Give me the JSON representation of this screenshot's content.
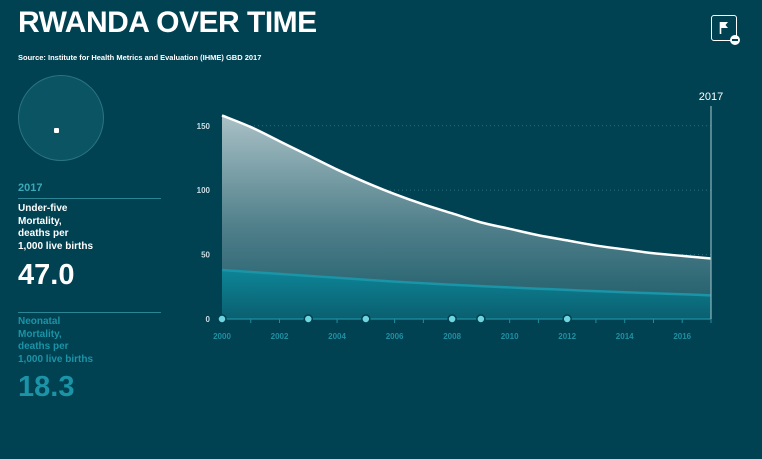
{
  "header": {
    "title": "RWANDA OVER TIME",
    "source": "Source: Institute for Health Metrics and Evaluation (IHME) GBD 2017"
  },
  "panel": {
    "year": "2017",
    "under_five": {
      "label_lines": [
        "Under-five",
        "Mortality,",
        "deaths per",
        "1,000 live births"
      ],
      "value": "47.0"
    },
    "neonatal": {
      "label_lines": [
        "Neonatal",
        "Mortality,",
        "deaths per",
        "1,000 live births"
      ],
      "value": "18.3"
    }
  },
  "colors": {
    "background": "#004152",
    "under_five_line": "#ffffff",
    "neonatal_line": "#1a94a6",
    "accent": "#3aa9b8"
  },
  "icons": {
    "flag_button": "flag-icon",
    "flag_badge": "minus-badge-icon"
  },
  "chart_data": {
    "type": "area",
    "x": [
      2000,
      2001,
      2002,
      2003,
      2004,
      2005,
      2006,
      2007,
      2008,
      2009,
      2010,
      2011,
      2012,
      2013,
      2014,
      2015,
      2016,
      2017
    ],
    "series": [
      {
        "name": "Under-five Mortality, deaths per 1,000 live births",
        "values": [
          158,
          149,
          138,
          127,
          116,
          106,
          97,
          89,
          82,
          75,
          70,
          65,
          61,
          57,
          54,
          51,
          49,
          47.0
        ]
      },
      {
        "name": "Neonatal Mortality, deaths per 1,000 live births",
        "values": [
          38,
          36.5,
          35,
          33.5,
          32,
          30.5,
          29,
          27.8,
          26.6,
          25.5,
          24.5,
          23.5,
          22.6,
          21.6,
          20.8,
          20,
          19.2,
          18.3
        ]
      }
    ],
    "y_ticks": [
      "0",
      "50",
      "100",
      "150"
    ],
    "x_ticks": [
      "2000",
      "2002",
      "2004",
      "2006",
      "2008",
      "2010",
      "2012",
      "2014",
      "2016"
    ],
    "xlim": [
      2000,
      2017
    ],
    "ylim": [
      0,
      170
    ],
    "selected_year": "2017",
    "event_markers_x": [
      2000,
      2003,
      2005,
      2008,
      2009,
      2012
    ],
    "grid": true
  }
}
